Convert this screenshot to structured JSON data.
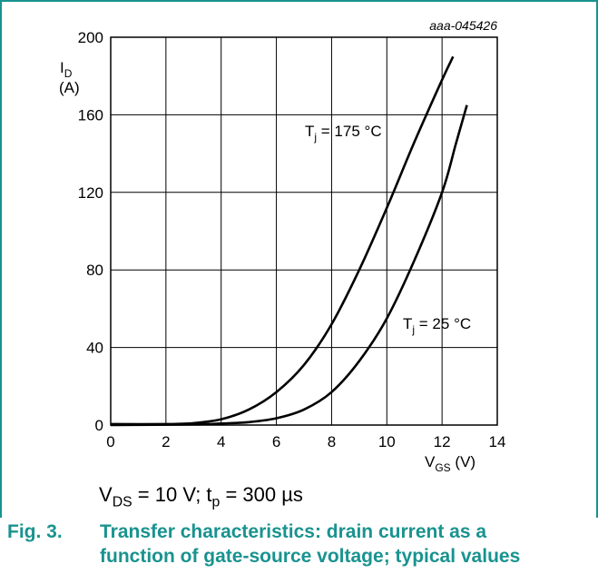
{
  "figure_id": "aaa-045426",
  "condition": {
    "vds_main": "V",
    "vds_sub": "DS",
    "vds_rest": " = 10 V; t",
    "tp_sub": "p",
    "tp_rest": " = 300 µs"
  },
  "caption": {
    "number": "Fig. 3.",
    "line1": "Transfer characteristics: drain current as a",
    "line2": "function of gate-source voltage; typical values"
  },
  "colors": {
    "accent": "#19938f",
    "grid": "#000000",
    "curve": "#000000"
  },
  "chart_data": {
    "type": "line",
    "title": "",
    "xlabel": {
      "main": "V",
      "sub": "GS",
      "unit": " (V)"
    },
    "ylabel": {
      "main": "I",
      "sub": "D",
      "unit": "(A)"
    },
    "xlim": [
      0,
      14
    ],
    "ylim": [
      0,
      200
    ],
    "xticks": [
      0,
      2,
      4,
      6,
      8,
      10,
      12,
      14
    ],
    "yticks": [
      0,
      40,
      80,
      120,
      160,
      200
    ],
    "grid": true,
    "series": [
      {
        "name": "Tj = 175 °C",
        "label_main": "T",
        "label_sub": "j",
        "label_rest": " = 175 °C",
        "x": [
          0,
          2,
          3,
          4,
          5,
          6,
          7,
          8,
          9,
          10,
          11,
          12,
          12.4
        ],
        "y": [
          0.5,
          0.5,
          1,
          3,
          8,
          17,
          31,
          52,
          80,
          112,
          146,
          178,
          190
        ]
      },
      {
        "name": "Tj = 25 °C",
        "label_main": "T",
        "label_sub": "j",
        "label_rest": " = 25 °C",
        "x": [
          0,
          3,
          4,
          5,
          6,
          7,
          8,
          9,
          10,
          11,
          12,
          12.5,
          12.9
        ],
        "y": [
          0,
          0.3,
          0.8,
          1.5,
          3.5,
          8,
          17,
          33,
          55,
          85,
          120,
          145,
          165
        ]
      }
    ]
  }
}
